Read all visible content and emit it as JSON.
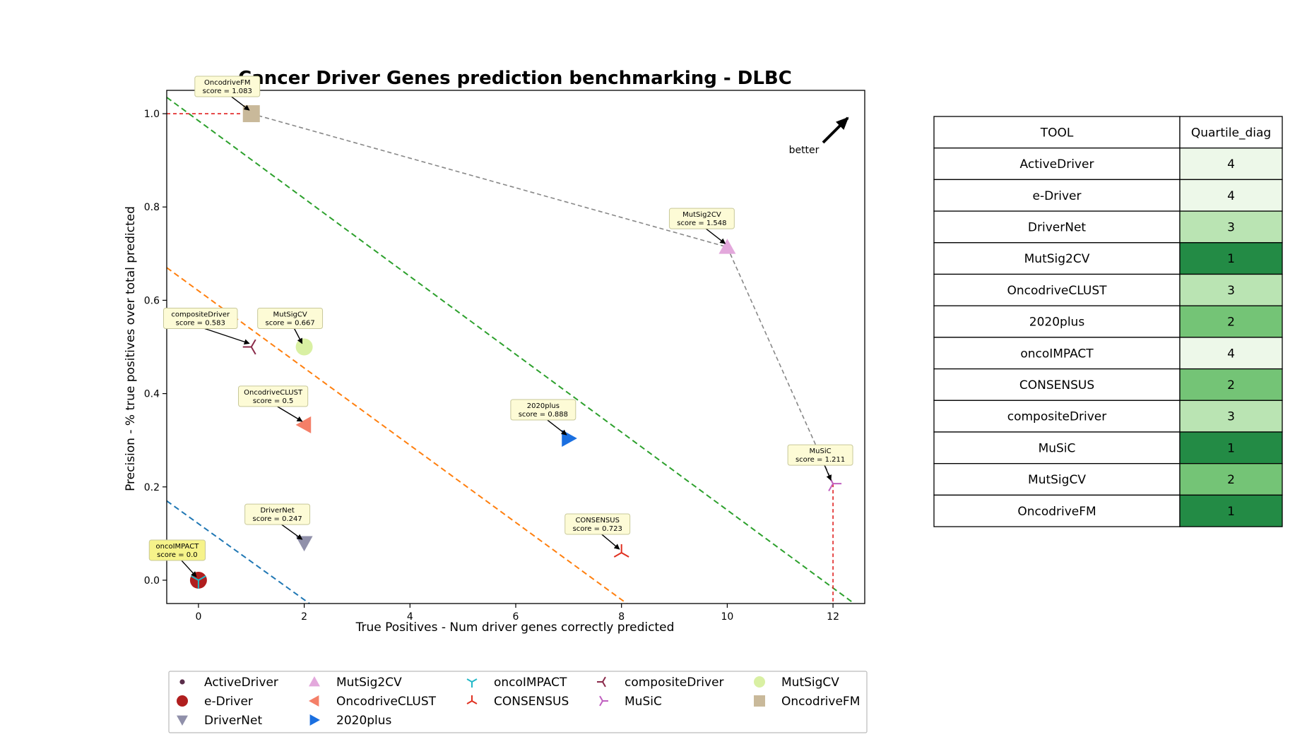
{
  "chart_data": {
    "type": "scatter",
    "title": "Cancer Driver Genes prediction benchmarking - DLBC",
    "xlabel": "True Positives - Num driver genes correctly predicted",
    "ylabel": "Precision - % true positives over total predicted",
    "xlim": [
      -0.6,
      12.6
    ],
    "ylim": [
      -0.05,
      1.05
    ],
    "xticks": [
      0,
      2,
      4,
      6,
      8,
      10,
      12
    ],
    "yticks": [
      0.0,
      0.2,
      0.4,
      0.6,
      0.8,
      1.0
    ],
    "ytick_labels": [
      "0.0",
      "0.2",
      "0.4",
      "0.6",
      "0.8",
      "1.0"
    ],
    "grid": false,
    "better_label": "better",
    "points": [
      {
        "name": "ActiveDriver",
        "x": 0,
        "y": 0.0,
        "score": "0.0",
        "color": "#5a2e4a",
        "marker": "dot"
      },
      {
        "name": "e-Driver",
        "x": 0,
        "y": 0.0,
        "score": "0.0",
        "color": "#b01e1e",
        "marker": "circle"
      },
      {
        "name": "DriverNet",
        "x": 2,
        "y": 0.08,
        "score": "0.247",
        "color": "#9090aa",
        "marker": "tri-down"
      },
      {
        "name": "MutSig2CV",
        "x": 10,
        "y": 0.714,
        "score": "1.548",
        "color": "#e3a8dc",
        "marker": "tri-up"
      },
      {
        "name": "OncodriveCLUST",
        "x": 2,
        "y": 0.333,
        "score": "0.5",
        "color": "#f47f68",
        "marker": "tri-left"
      },
      {
        "name": "2020plus",
        "x": 7,
        "y": 0.304,
        "score": "0.888",
        "color": "#1a6fe0",
        "marker": "tri-right"
      },
      {
        "name": "oncoIMPACT",
        "x": 0,
        "y": 0.0,
        "score": "0.0",
        "color": "#22b8c8",
        "marker": "y-down"
      },
      {
        "name": "CONSENSUS",
        "x": 8,
        "y": 0.059,
        "score": "0.723",
        "color": "#e03020",
        "marker": "y-up"
      },
      {
        "name": "compositeDriver",
        "x": 1,
        "y": 0.5,
        "score": "0.583",
        "color": "#8a2a4a",
        "marker": "y-left"
      },
      {
        "name": "MuSiC",
        "x": 12,
        "y": 0.207,
        "score": "1.211",
        "color": "#c060c0",
        "marker": "y-right"
      },
      {
        "name": "MutSigCV",
        "x": 2,
        "y": 0.5,
        "score": "0.667",
        "color": "#d9f0a3",
        "marker": "circle"
      },
      {
        "name": "OncodriveFM",
        "x": 1,
        "y": 1.0,
        "score": "1.083",
        "color": "#c9b99a",
        "marker": "square"
      }
    ],
    "annotations": [
      {
        "tool": "OncodriveFM",
        "line1": "OncodriveFM",
        "line2": "score = 1.083",
        "hl": false
      },
      {
        "tool": "MutSig2CV",
        "line1": "MutSig2CV",
        "line2": "score = 1.548",
        "hl": false
      },
      {
        "tool": "compositeDriver",
        "line1": "compositeDriver",
        "line2": "score = 0.583",
        "hl": false
      },
      {
        "tool": "MutSigCV",
        "line1": "MutSigCV",
        "line2": "score = 0.667",
        "hl": false
      },
      {
        "tool": "OncodriveCLUST",
        "line1": "OncodriveCLUST",
        "line2": "score = 0.5",
        "hl": false
      },
      {
        "tool": "2020plus",
        "line1": "2020plus",
        "line2": "score = 0.888",
        "hl": false
      },
      {
        "tool": "MuSiC",
        "line1": "MuSiC",
        "line2": "score = 1.211",
        "hl": false
      },
      {
        "tool": "DriverNet",
        "line1": "DriverNet",
        "line2": "score = 0.247",
        "hl": false
      },
      {
        "tool": "CONSENSUS",
        "line1": "CONSENSUS",
        "line2": "score = 0.723",
        "hl": false
      },
      {
        "tool": "oncoIMPACT",
        "line1": "oncoIMPACT",
        "line2": "score = 0.0",
        "hl": true
      }
    ],
    "pareto_frontier": [
      [
        1,
        1.0
      ],
      [
        10,
        0.714
      ],
      [
        12,
        0.207
      ]
    ],
    "quartile_lines": [
      {
        "color": "#1f77b4",
        "points": [
          [
            -0.6,
            0.17
          ],
          [
            2.1,
            -0.05
          ]
        ]
      },
      {
        "color": "#ff7f0e",
        "points": [
          [
            -0.6,
            0.67
          ],
          [
            8.1,
            -0.05
          ]
        ]
      },
      {
        "color": "#2ca02c",
        "points": [
          [
            -0.6,
            1.035
          ],
          [
            12.4,
            -0.05
          ]
        ]
      }
    ],
    "legend": {
      "placement": "bottom",
      "columns": [
        [
          "ActiveDriver",
          "e-Driver",
          "DriverNet"
        ],
        [
          "MutSig2CV",
          "OncodriveCLUST",
          "2020plus"
        ],
        [
          "oncoIMPACT",
          "CONSENSUS"
        ],
        [
          "compositeDriver",
          "MuSiC"
        ],
        [
          "MutSigCV",
          "OncodriveFM"
        ]
      ]
    }
  },
  "table": {
    "headers": [
      "TOOL",
      "Quartile_diag"
    ],
    "rows": [
      {
        "tool": "ActiveDriver",
        "quartile": "4",
        "color": "#edf8e9"
      },
      {
        "tool": "e-Driver",
        "quartile": "4",
        "color": "#edf8e9"
      },
      {
        "tool": "DriverNet",
        "quartile": "3",
        "color": "#bae4b3"
      },
      {
        "tool": "MutSig2CV",
        "quartile": "1",
        "color": "#238b45"
      },
      {
        "tool": "OncodriveCLUST",
        "quartile": "3",
        "color": "#bae4b3"
      },
      {
        "tool": "2020plus",
        "quartile": "2",
        "color": "#74c476"
      },
      {
        "tool": "oncoIMPACT",
        "quartile": "4",
        "color": "#edf8e9"
      },
      {
        "tool": "CONSENSUS",
        "quartile": "2",
        "color": "#74c476"
      },
      {
        "tool": "compositeDriver",
        "quartile": "3",
        "color": "#bae4b3"
      },
      {
        "tool": "MuSiC",
        "quartile": "1",
        "color": "#238b45"
      },
      {
        "tool": "MutSigCV",
        "quartile": "2",
        "color": "#74c476"
      },
      {
        "tool": "OncodriveFM",
        "quartile": "1",
        "color": "#238b45"
      }
    ]
  }
}
